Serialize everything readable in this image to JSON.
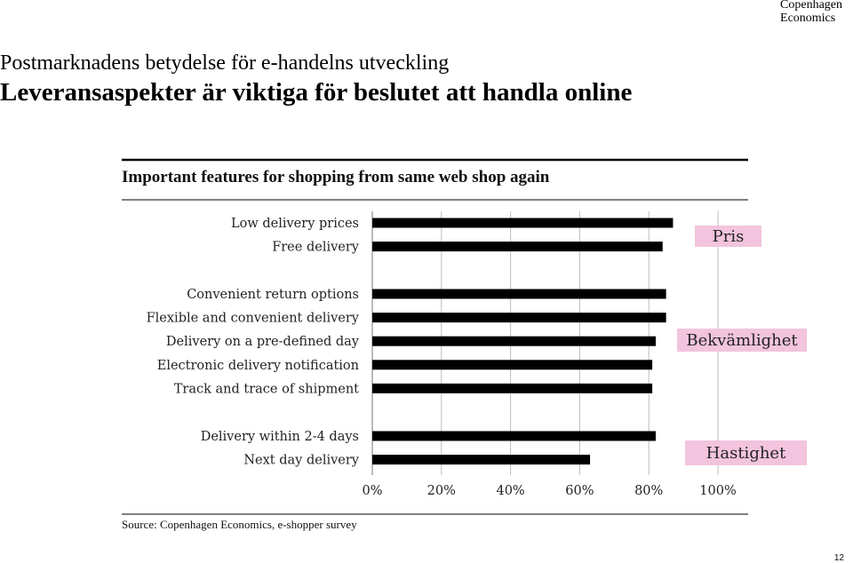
{
  "logo": {
    "line1": "Copenhagen",
    "line2": "Economics"
  },
  "supertitle": "Postmarknadens betydelse för e-handelns utveckling",
  "title": "Leveransaspekter är viktiga för beslutet att handla online",
  "source": "Source: Copenhagen Economics, e-shopper survey",
  "page_number": "12",
  "colors": {
    "bar": "#000000",
    "group_bg": "#f2c4dd",
    "grid": "#bdbdbd"
  },
  "chart_data": {
    "type": "bar",
    "orientation": "horizontal",
    "title": "Important features for shopping from same web shop again",
    "xlim": [
      0,
      100
    ],
    "x_ticks": [
      "0%",
      "20%",
      "40%",
      "60%",
      "80%",
      "100%"
    ],
    "grid": "vertical",
    "groups": [
      {
        "label": "Pris",
        "categories": [
          "Low delivery prices",
          "Free delivery"
        ],
        "values": [
          87,
          84
        ]
      },
      {
        "label": "Bekvämlighet",
        "categories": [
          "Convenient return options",
          "Flexible and convenient delivery",
          "Delivery on a pre-defined day",
          "Electronic delivery notification",
          "Track and trace of shipment"
        ],
        "values": [
          85,
          85,
          82,
          81,
          81
        ]
      },
      {
        "label": "Hastighet",
        "categories": [
          "Delivery within 2-4 days",
          "Next day delivery"
        ],
        "values": [
          82,
          63
        ]
      }
    ]
  }
}
